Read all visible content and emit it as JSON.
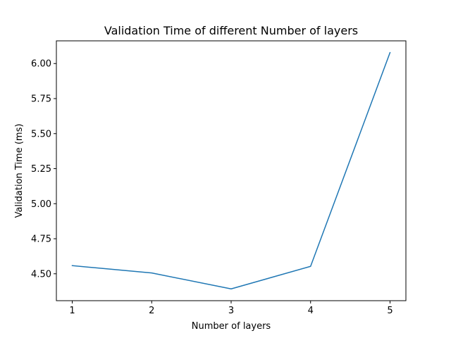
{
  "chart_data": {
    "type": "line",
    "title": "Validation Time of different Number of layers",
    "xlabel": "Number of layers",
    "ylabel": "Validation Time (ms)",
    "x": [
      1,
      2,
      3,
      4,
      5
    ],
    "series": [
      {
        "name": "Validation Time",
        "color": "#1f77b4",
        "values": [
          4.558,
          4.506,
          4.392,
          4.553,
          6.078
        ]
      }
    ],
    "xticks": [
      1,
      2,
      3,
      4,
      5
    ],
    "xtick_labels": [
      "1",
      "2",
      "3",
      "4",
      "5"
    ],
    "yticks": [
      4.5,
      4.75,
      5.0,
      5.25,
      5.5,
      5.75,
      6.0
    ],
    "ytick_labels": [
      "4.50",
      "4.75",
      "5.00",
      "5.25",
      "5.50",
      "5.75",
      "6.00"
    ],
    "xlim": [
      0.8,
      5.2
    ],
    "ylim": [
      4.308,
      6.162
    ],
    "grid": false,
    "legend": false
  }
}
